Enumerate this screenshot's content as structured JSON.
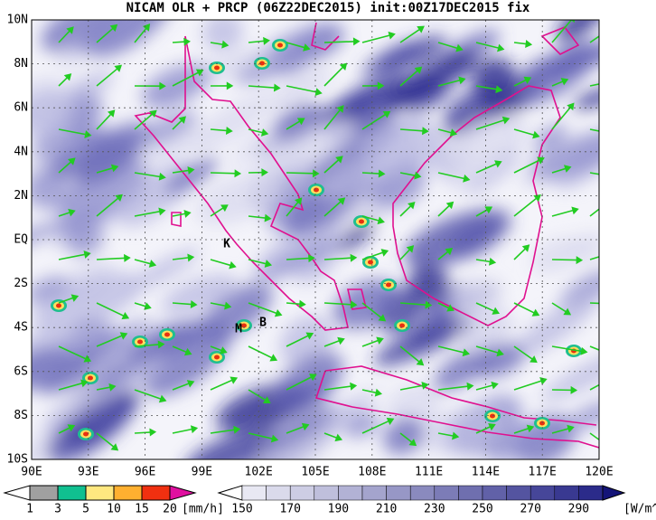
{
  "title": "NICAM OLR + PRCP (06Z22DEC2015) init:00Z17DEC2015 fix",
  "map": {
    "lat_labels": [
      "10N",
      "8N",
      "6N",
      "4N",
      "2N",
      "EQ",
      "2S",
      "4S",
      "6S",
      "8S",
      "10S"
    ],
    "lon_labels": [
      "90E",
      "93E",
      "96E",
      "99E",
      "102E",
      "105E",
      "108E",
      "111E",
      "114E",
      "117E",
      "120E"
    ],
    "place_labels": [
      "K",
      "M",
      "B"
    ]
  },
  "precip_legend": {
    "labels": [
      "1",
      "3",
      "5",
      "10",
      "15",
      "20"
    ],
    "unit": "[mm/h]"
  },
  "olr_legend": {
    "labels": [
      "150",
      "170",
      "190",
      "210",
      "230",
      "250",
      "270",
      "290"
    ],
    "unit": "[W/m^2]"
  }
}
